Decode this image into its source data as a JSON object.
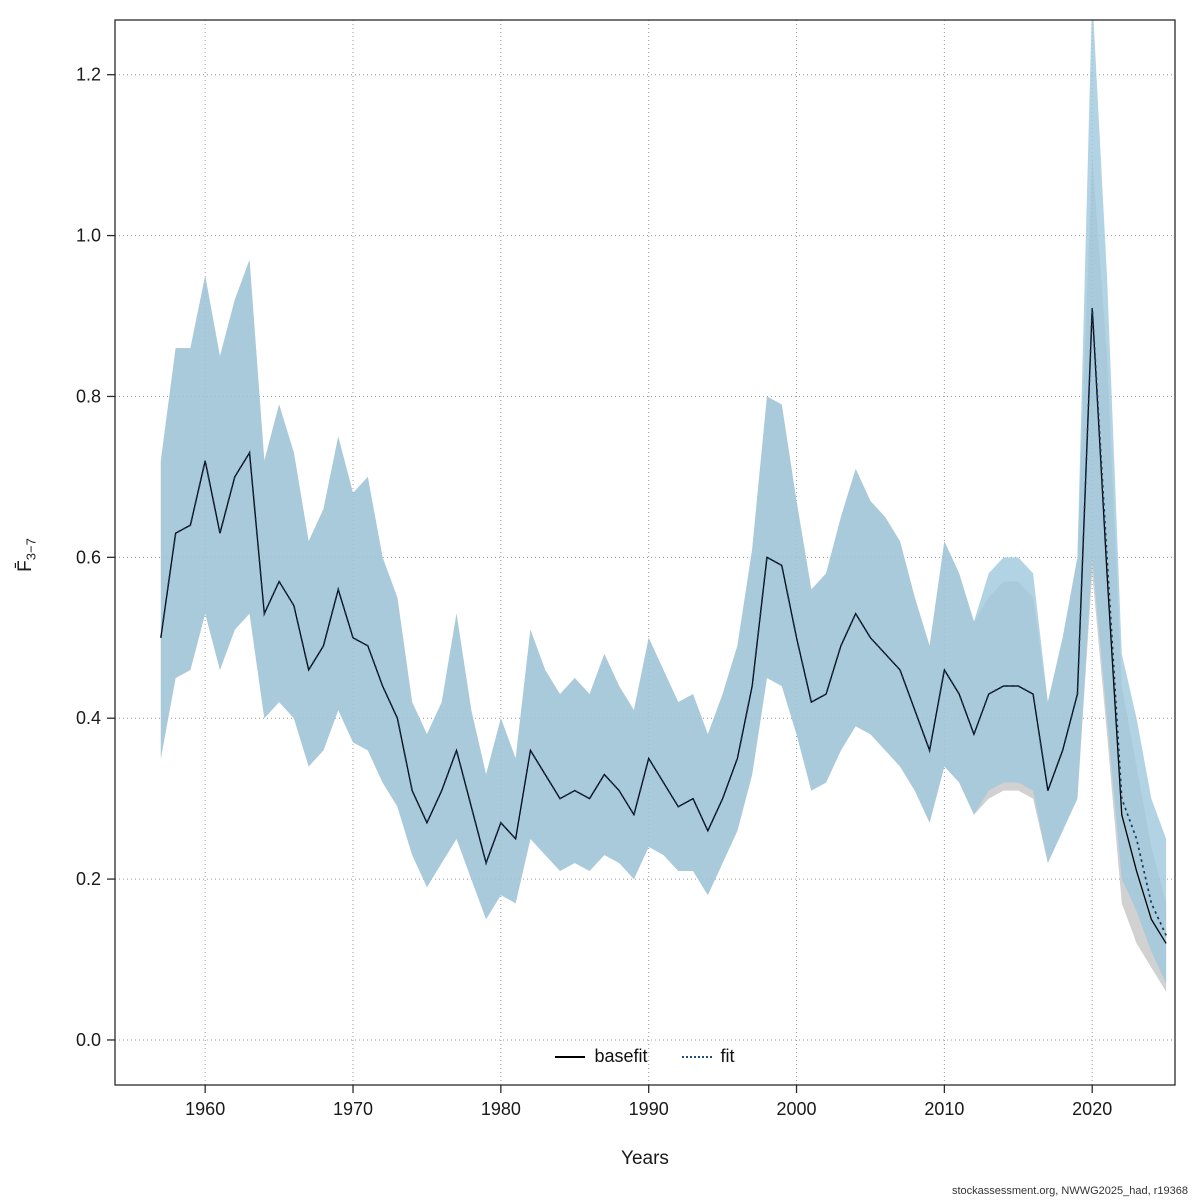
{
  "axes": {
    "x_label": "Years",
    "y_label_main": "F̄",
    "y_label_sub": "3−7",
    "x_tick_labels": [
      "1960",
      "1970",
      "1980",
      "1990",
      "2000",
      "2010",
      "2020"
    ],
    "y_tick_labels": [
      "0.0",
      "0.2",
      "0.4",
      "0.6",
      "0.8",
      "1.0",
      "1.2"
    ]
  },
  "legend": {
    "items": [
      {
        "label": "basefit",
        "style": "solid",
        "color": "#000000"
      },
      {
        "label": "fit",
        "style": "dotted",
        "color": "#1f4e79"
      }
    ]
  },
  "footer": {
    "credit": "stockassessment.org, NWWG2025_had, r19368"
  },
  "chart_data": {
    "type": "line",
    "title": "",
    "xlabel": "Years",
    "ylabel": "F̄ 3−7",
    "xlim": [
      1953.9,
      2025.6
    ],
    "ylim": [
      -0.056,
      1.268
    ],
    "xticks": [
      1960,
      1970,
      1980,
      1990,
      2000,
      2010,
      2020
    ],
    "yticks": [
      0.0,
      0.2,
      0.4,
      0.6,
      0.8,
      1.0,
      1.2
    ],
    "grid": true,
    "legend_position": "bottom-center-inside",
    "x": [
      1957,
      1958,
      1959,
      1960,
      1961,
      1962,
      1963,
      1964,
      1965,
      1966,
      1967,
      1968,
      1969,
      1970,
      1971,
      1972,
      1973,
      1974,
      1975,
      1976,
      1977,
      1978,
      1979,
      1980,
      1981,
      1982,
      1983,
      1984,
      1985,
      1986,
      1987,
      1988,
      1989,
      1990,
      1991,
      1992,
      1993,
      1994,
      1995,
      1996,
      1997,
      1998,
      1999,
      2000,
      2001,
      2002,
      2003,
      2004,
      2005,
      2006,
      2007,
      2008,
      2009,
      2010,
      2011,
      2012,
      2013,
      2014,
      2015,
      2016,
      2017,
      2018,
      2019,
      2020,
      2021,
      2022,
      2023,
      2024,
      2025
    ],
    "series": [
      {
        "name": "basefit",
        "color": "#000000",
        "line_style": "solid",
        "values": [
          0.5,
          0.63,
          0.64,
          0.72,
          0.63,
          0.7,
          0.73,
          0.53,
          0.57,
          0.54,
          0.46,
          0.49,
          0.56,
          0.5,
          0.49,
          0.44,
          0.4,
          0.31,
          0.27,
          0.31,
          0.36,
          0.29,
          0.22,
          0.27,
          0.25,
          0.36,
          0.33,
          0.3,
          0.31,
          0.3,
          0.33,
          0.31,
          0.28,
          0.35,
          0.32,
          0.29,
          0.3,
          0.26,
          0.3,
          0.35,
          0.44,
          0.6,
          0.59,
          0.5,
          0.42,
          0.43,
          0.49,
          0.53,
          0.5,
          0.48,
          0.46,
          0.41,
          0.36,
          0.46,
          0.43,
          0.38,
          0.43,
          0.44,
          0.44,
          0.43,
          0.31,
          0.36,
          0.43,
          0.91,
          0.58,
          0.28,
          0.21,
          0.15,
          0.12
        ],
        "lower": [
          0.35,
          0.45,
          0.46,
          0.53,
          0.46,
          0.51,
          0.53,
          0.4,
          0.42,
          0.4,
          0.34,
          0.36,
          0.41,
          0.37,
          0.36,
          0.32,
          0.29,
          0.23,
          0.19,
          0.22,
          0.25,
          0.2,
          0.15,
          0.18,
          0.17,
          0.25,
          0.23,
          0.21,
          0.22,
          0.21,
          0.23,
          0.22,
          0.2,
          0.24,
          0.23,
          0.21,
          0.21,
          0.18,
          0.22,
          0.26,
          0.33,
          0.45,
          0.44,
          0.38,
          0.31,
          0.32,
          0.36,
          0.39,
          0.38,
          0.36,
          0.34,
          0.31,
          0.27,
          0.34,
          0.32,
          0.28,
          0.3,
          0.31,
          0.31,
          0.3,
          0.22,
          0.26,
          0.3,
          0.58,
          0.38,
          0.17,
          0.12,
          0.09,
          0.06
        ],
        "upper": [
          0.72,
          0.86,
          0.86,
          0.95,
          0.85,
          0.92,
          0.97,
          0.72,
          0.79,
          0.73,
          0.62,
          0.66,
          0.75,
          0.68,
          0.7,
          0.6,
          0.55,
          0.42,
          0.38,
          0.42,
          0.53,
          0.41,
          0.33,
          0.4,
          0.35,
          0.51,
          0.46,
          0.43,
          0.45,
          0.43,
          0.48,
          0.44,
          0.41,
          0.5,
          0.46,
          0.42,
          0.43,
          0.38,
          0.43,
          0.49,
          0.61,
          0.8,
          0.79,
          0.67,
          0.56,
          0.58,
          0.65,
          0.71,
          0.67,
          0.65,
          0.62,
          0.55,
          0.49,
          0.62,
          0.58,
          0.52,
          0.55,
          0.57,
          0.57,
          0.55,
          0.42,
          0.5,
          0.6,
          1.1,
          0.85,
          0.44,
          0.34,
          0.24,
          0.17
        ],
        "band_color": "#9a9a9a",
        "band_opacity": 0.45
      },
      {
        "name": "fit",
        "color": "#163a5f",
        "line_style": "dotted",
        "values": [
          0.5,
          0.63,
          0.64,
          0.72,
          0.63,
          0.7,
          0.73,
          0.53,
          0.57,
          0.54,
          0.46,
          0.49,
          0.56,
          0.5,
          0.49,
          0.44,
          0.4,
          0.31,
          0.27,
          0.31,
          0.36,
          0.29,
          0.22,
          0.27,
          0.25,
          0.36,
          0.33,
          0.3,
          0.31,
          0.3,
          0.33,
          0.31,
          0.28,
          0.35,
          0.32,
          0.29,
          0.3,
          0.26,
          0.3,
          0.35,
          0.44,
          0.6,
          0.59,
          0.5,
          0.42,
          0.43,
          0.49,
          0.53,
          0.5,
          0.48,
          0.46,
          0.41,
          0.36,
          0.46,
          0.43,
          0.38,
          0.43,
          0.44,
          0.44,
          0.43,
          0.31,
          0.36,
          0.43,
          0.91,
          0.6,
          0.3,
          0.25,
          0.17,
          0.13
        ],
        "lower": [
          0.35,
          0.45,
          0.46,
          0.53,
          0.46,
          0.51,
          0.53,
          0.4,
          0.42,
          0.4,
          0.34,
          0.36,
          0.41,
          0.37,
          0.36,
          0.32,
          0.29,
          0.23,
          0.19,
          0.22,
          0.25,
          0.2,
          0.15,
          0.18,
          0.17,
          0.25,
          0.23,
          0.21,
          0.22,
          0.21,
          0.23,
          0.22,
          0.2,
          0.24,
          0.23,
          0.21,
          0.21,
          0.18,
          0.22,
          0.26,
          0.33,
          0.45,
          0.44,
          0.38,
          0.31,
          0.32,
          0.36,
          0.39,
          0.38,
          0.36,
          0.34,
          0.31,
          0.27,
          0.34,
          0.32,
          0.28,
          0.31,
          0.32,
          0.32,
          0.31,
          0.22,
          0.26,
          0.3,
          0.6,
          0.4,
          0.2,
          0.16,
          0.11,
          0.07
        ],
        "upper": [
          0.72,
          0.86,
          0.86,
          0.95,
          0.85,
          0.92,
          0.97,
          0.72,
          0.79,
          0.73,
          0.62,
          0.66,
          0.75,
          0.68,
          0.7,
          0.6,
          0.55,
          0.42,
          0.38,
          0.42,
          0.53,
          0.41,
          0.33,
          0.4,
          0.35,
          0.51,
          0.46,
          0.43,
          0.45,
          0.43,
          0.48,
          0.44,
          0.41,
          0.5,
          0.46,
          0.42,
          0.43,
          0.38,
          0.43,
          0.49,
          0.61,
          0.8,
          0.79,
          0.67,
          0.56,
          0.58,
          0.65,
          0.71,
          0.67,
          0.65,
          0.62,
          0.55,
          0.49,
          0.62,
          0.58,
          0.52,
          0.58,
          0.6,
          0.6,
          0.58,
          0.42,
          0.5,
          0.6,
          1.3,
          0.95,
          0.48,
          0.4,
          0.3,
          0.25
        ],
        "band_color": "#9fc8dd",
        "band_opacity": 0.8
      }
    ],
    "colors": {
      "grid": "#999999",
      "frame": "#2b2b2b",
      "tick_text": "#1a1a1a"
    }
  }
}
